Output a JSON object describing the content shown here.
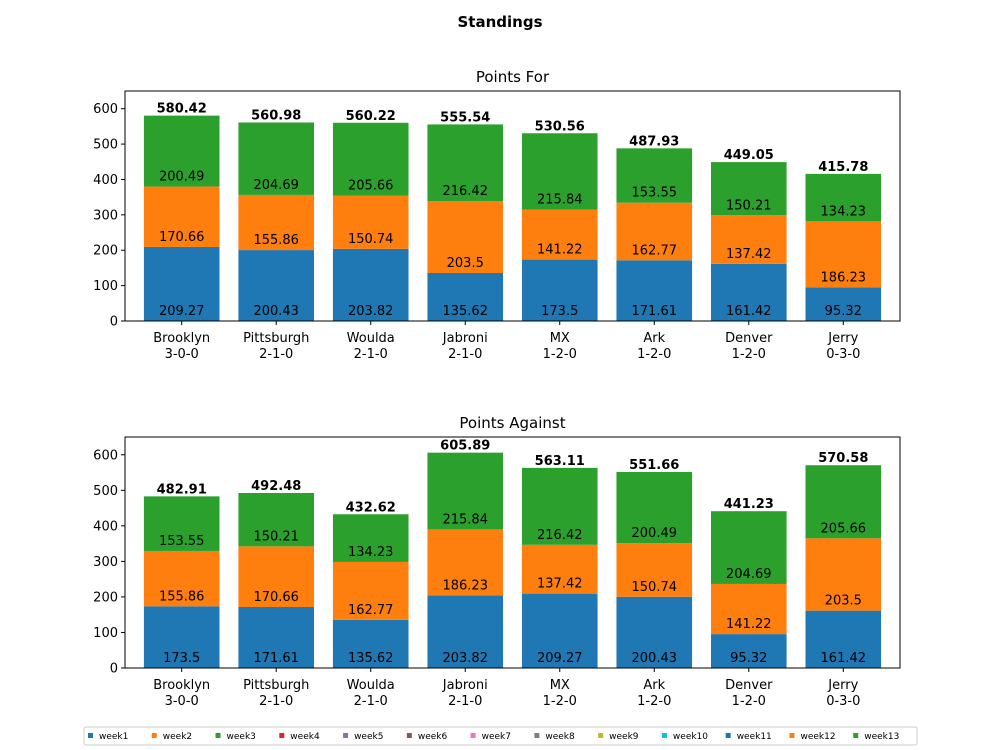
{
  "figure": {
    "title": "Standings"
  },
  "colors": {
    "week1": "#1f77b4",
    "week2": "#ff7f0e",
    "week3": "#2ca02c",
    "week4": "#d62728",
    "week5": "#9467bd",
    "week6": "#8c564b",
    "week7": "#e377c2",
    "week8": "#7f7f7f",
    "week9": "#bcbd22",
    "week10": "#17becf",
    "week11": "#1f77b4",
    "week12": "#ff7f0e",
    "week13": "#2ca02c"
  },
  "chart_data": [
    {
      "type": "bar",
      "stacked": true,
      "title": "Points For",
      "categories": [
        "Brooklyn\n3-0-0",
        "Pittsburgh\n2-1-0",
        "Woulda\n2-1-0",
        "Jabroni\n2-1-0",
        "MX\n1-2-0",
        "Ark\n1-2-0",
        "Denver\n1-2-0",
        "Jerry\n0-3-0"
      ],
      "series": [
        {
          "name": "week1",
          "values": [
            209.27,
            200.43,
            203.82,
            135.62,
            173.5,
            171.61,
            161.42,
            95.32
          ]
        },
        {
          "name": "week2",
          "values": [
            170.66,
            155.86,
            150.74,
            203.5,
            141.22,
            162.77,
            137.42,
            186.23
          ]
        },
        {
          "name": "week3",
          "values": [
            200.49,
            204.69,
            205.66,
            216.42,
            215.84,
            153.55,
            150.21,
            134.23
          ]
        }
      ],
      "totals": [
        "580.42",
        "560.98",
        "560.22",
        "555.54",
        "530.56",
        "487.93",
        "449.05",
        "415.78"
      ],
      "ylim": [
        0,
        650
      ],
      "yticks": [
        0,
        100,
        200,
        300,
        400,
        500,
        600
      ],
      "grid": false
    },
    {
      "type": "bar",
      "stacked": true,
      "title": "Points Against",
      "categories": [
        "Brooklyn\n3-0-0",
        "Pittsburgh\n2-1-0",
        "Woulda\n2-1-0",
        "Jabroni\n2-1-0",
        "MX\n1-2-0",
        "Ark\n1-2-0",
        "Denver\n1-2-0",
        "Jerry\n0-3-0"
      ],
      "series": [
        {
          "name": "week1",
          "values": [
            173.5,
            171.61,
            135.62,
            203.82,
            209.27,
            200.43,
            95.32,
            161.42
          ]
        },
        {
          "name": "week2",
          "values": [
            155.86,
            170.66,
            162.77,
            186.23,
            137.42,
            150.74,
            141.22,
            203.5
          ]
        },
        {
          "name": "week3",
          "values": [
            153.55,
            150.21,
            134.23,
            215.84,
            216.42,
            200.49,
            204.69,
            205.66
          ]
        }
      ],
      "totals": [
        "482.91",
        "492.48",
        "432.62",
        "605.89",
        "563.11",
        "551.66",
        "441.23",
        "570.58"
      ],
      "ylim": [
        0,
        650
      ],
      "yticks": [
        0,
        100,
        200,
        300,
        400,
        500,
        600
      ],
      "grid": false
    }
  ],
  "legend": {
    "placement": "bottom",
    "entries": [
      "week1",
      "week2",
      "week3",
      "week4",
      "week5",
      "week6",
      "week7",
      "week8",
      "week9",
      "week10",
      "week11",
      "week12",
      "week13"
    ]
  }
}
